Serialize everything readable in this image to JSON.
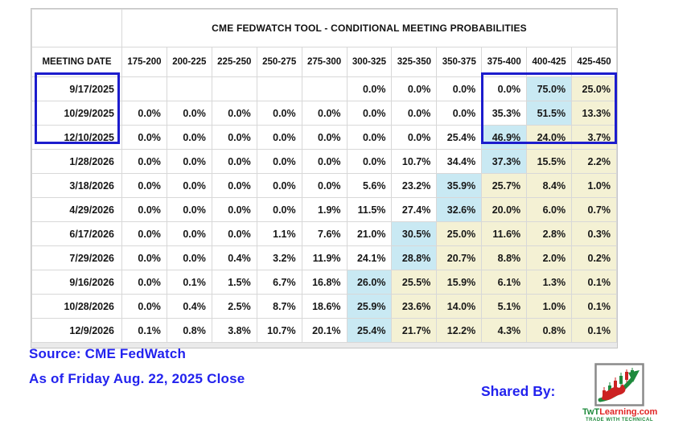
{
  "colors": {
    "highlight_blue": "#c9e9f3",
    "highlight_yellow": "#f4f1d4",
    "box_border_blue": "#1c1ccd",
    "footer_text_blue": "#2222ee"
  },
  "table": {
    "title": "CME FEDWATCH TOOL - CONDITIONAL MEETING PROBABILITIES",
    "date_col_header": "MEETING DATE",
    "rate_headers": [
      "175-200",
      "200-225",
      "225-250",
      "250-275",
      "275-300",
      "300-325",
      "325-350",
      "350-375",
      "375-400",
      "400-425",
      "425-450"
    ],
    "rows": [
      {
        "date": "9/17/2025",
        "values": [
          "",
          "",
          "",
          "",
          "",
          "0.0%",
          "0.0%",
          "0.0%",
          "0.0%",
          "75.0%",
          "25.0%"
        ],
        "styles": [
          "w",
          "w",
          "w",
          "w",
          "w",
          "w",
          "w",
          "w",
          "w",
          "b",
          "y"
        ]
      },
      {
        "date": "10/29/2025",
        "values": [
          "0.0%",
          "0.0%",
          "0.0%",
          "0.0%",
          "0.0%",
          "0.0%",
          "0.0%",
          "0.0%",
          "35.3%",
          "51.5%",
          "13.3%"
        ],
        "styles": [
          "w",
          "w",
          "w",
          "w",
          "w",
          "w",
          "w",
          "w",
          "w",
          "b",
          "y"
        ]
      },
      {
        "date": "12/10/2025",
        "values": [
          "0.0%",
          "0.0%",
          "0.0%",
          "0.0%",
          "0.0%",
          "0.0%",
          "0.0%",
          "25.4%",
          "46.9%",
          "24.0%",
          "3.7%"
        ],
        "styles": [
          "w",
          "w",
          "w",
          "w",
          "w",
          "w",
          "w",
          "w",
          "b",
          "y",
          "y"
        ]
      },
      {
        "date": "1/28/2026",
        "values": [
          "0.0%",
          "0.0%",
          "0.0%",
          "0.0%",
          "0.0%",
          "0.0%",
          "10.7%",
          "34.4%",
          "37.3%",
          "15.5%",
          "2.2%"
        ],
        "styles": [
          "w",
          "w",
          "w",
          "w",
          "w",
          "w",
          "w",
          "w",
          "b",
          "y",
          "y"
        ]
      },
      {
        "date": "3/18/2026",
        "values": [
          "0.0%",
          "0.0%",
          "0.0%",
          "0.0%",
          "0.0%",
          "5.6%",
          "23.2%",
          "35.9%",
          "25.7%",
          "8.4%",
          "1.0%"
        ],
        "styles": [
          "w",
          "w",
          "w",
          "w",
          "w",
          "w",
          "w",
          "b",
          "y",
          "y",
          "y"
        ]
      },
      {
        "date": "4/29/2026",
        "values": [
          "0.0%",
          "0.0%",
          "0.0%",
          "0.0%",
          "1.9%",
          "11.5%",
          "27.4%",
          "32.6%",
          "20.0%",
          "6.0%",
          "0.7%"
        ],
        "styles": [
          "w",
          "w",
          "w",
          "w",
          "w",
          "w",
          "w",
          "b",
          "y",
          "y",
          "y"
        ]
      },
      {
        "date": "6/17/2026",
        "values": [
          "0.0%",
          "0.0%",
          "0.0%",
          "1.1%",
          "7.6%",
          "21.0%",
          "30.5%",
          "25.0%",
          "11.6%",
          "2.8%",
          "0.3%"
        ],
        "styles": [
          "w",
          "w",
          "w",
          "w",
          "w",
          "w",
          "b",
          "y",
          "y",
          "y",
          "y"
        ]
      },
      {
        "date": "7/29/2026",
        "values": [
          "0.0%",
          "0.0%",
          "0.4%",
          "3.2%",
          "11.9%",
          "24.1%",
          "28.8%",
          "20.7%",
          "8.8%",
          "2.0%",
          "0.2%"
        ],
        "styles": [
          "w",
          "w",
          "w",
          "w",
          "w",
          "w",
          "b",
          "y",
          "y",
          "y",
          "y"
        ]
      },
      {
        "date": "9/16/2026",
        "values": [
          "0.0%",
          "0.1%",
          "1.5%",
          "6.7%",
          "16.8%",
          "26.0%",
          "25.5%",
          "15.9%",
          "6.1%",
          "1.3%",
          "0.1%"
        ],
        "styles": [
          "w",
          "w",
          "w",
          "w",
          "w",
          "b",
          "y",
          "y",
          "y",
          "y",
          "y"
        ]
      },
      {
        "date": "10/28/2026",
        "values": [
          "0.0%",
          "0.4%",
          "2.5%",
          "8.7%",
          "18.6%",
          "25.9%",
          "23.6%",
          "14.0%",
          "5.1%",
          "1.0%",
          "0.1%"
        ],
        "styles": [
          "w",
          "w",
          "w",
          "w",
          "w",
          "b",
          "y",
          "y",
          "y",
          "y",
          "y"
        ]
      },
      {
        "date": "12/9/2026",
        "values": [
          "0.1%",
          "0.8%",
          "3.8%",
          "10.7%",
          "20.1%",
          "25.4%",
          "21.7%",
          "12.2%",
          "4.3%",
          "0.8%",
          "0.1%"
        ],
        "styles": [
          "w",
          "w",
          "w",
          "w",
          "w",
          "b",
          "y",
          "y",
          "y",
          "y",
          "y"
        ]
      }
    ]
  },
  "footer": {
    "source": "Source: CME FedWatch",
    "as_of": "As of Friday Aug. 22, 2025 Close",
    "shared_by": "Shared By:",
    "logo": {
      "brand_prefix": "TwT",
      "brand_suffix": "Learning.com",
      "tagline": "TRADE WITH TECHNICAL"
    }
  }
}
